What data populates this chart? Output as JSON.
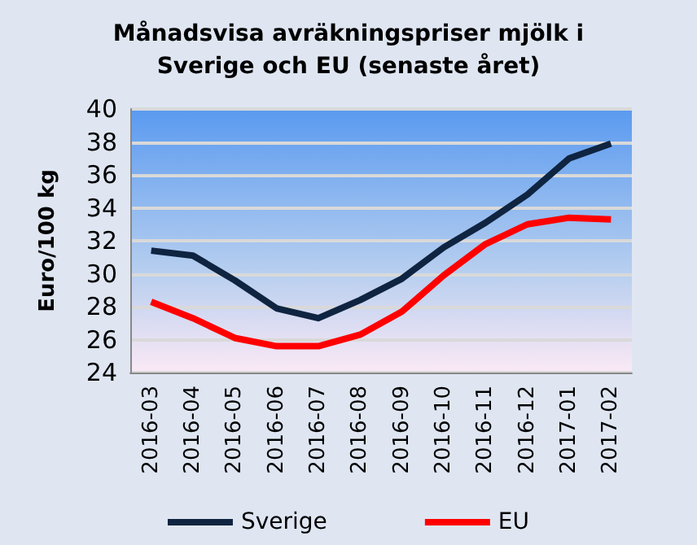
{
  "chart_data": {
    "type": "line",
    "title": "Månadsvisa avräkningspriser mjölk i\nSverige och EU (senaste året)",
    "ylabel": "Euro/100 kg",
    "categories": [
      "2016-03",
      "2016-04",
      "2016-05",
      "2016-06",
      "2016-07",
      "2016-08",
      "2016-09",
      "2016-10",
      "2016-11",
      "2016-12",
      "2017-01",
      "2017-02"
    ],
    "series": [
      {
        "name": "Sverige",
        "color": "#0f2440",
        "values": [
          31.4,
          31.1,
          29.6,
          27.9,
          27.3,
          28.4,
          29.7,
          31.6,
          33.1,
          34.8,
          37.0,
          37.9
        ]
      },
      {
        "name": "EU",
        "color": "#ff0000",
        "values": [
          28.3,
          27.3,
          26.1,
          25.6,
          25.6,
          26.3,
          27.7,
          29.9,
          31.8,
          33.0,
          33.4,
          33.3
        ]
      }
    ],
    "ylim": [
      24,
      40
    ],
    "yticks": [
      24,
      26,
      28,
      30,
      32,
      34,
      36,
      38,
      40
    ],
    "grid": "y",
    "legend": "bottom",
    "marker": "none",
    "line_style": "solid"
  }
}
